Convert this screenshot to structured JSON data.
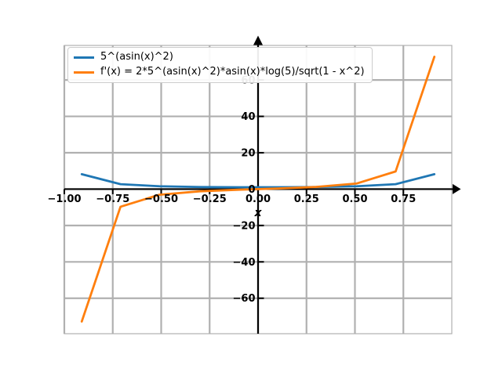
{
  "chart_data": {
    "type": "line",
    "x": [
      -0.91,
      -0.71,
      -0.51,
      -0.3,
      -0.1,
      0.1,
      0.3,
      0.51,
      0.71,
      0.91
    ],
    "series": [
      {
        "name": "5^(asin(x)^2)",
        "color": "#1f77b4",
        "values": [
          8.2,
          2.72,
          1.58,
          1.16,
          1.02,
          1.02,
          1.16,
          1.58,
          2.72,
          8.2
        ]
      },
      {
        "name": "f'(x) = 2*5^(asin(x)^2)*asin(x)*log(5)/sqrt(1 - x^2)",
        "color": "#ff7f0e",
        "values": [
          -72.8,
          -9.7,
          -3.1,
          -1.2,
          -0.33,
          0.33,
          1.2,
          3.1,
          9.7,
          72.8
        ]
      }
    ],
    "title": "",
    "xlabel": "x",
    "ylabel": "",
    "xlim": [
      -1.0,
      1.0
    ],
    "ylim": [
      -79.5,
      79.0
    ],
    "grid": true,
    "legend_position": "upper-left",
    "x_ticks": {
      "values": [
        -1.0,
        -0.75,
        -0.5,
        -0.25,
        0.0,
        0.25,
        0.5,
        0.75
      ],
      "labels": [
        "−1.00",
        "−0.75",
        "−0.50",
        "−0.25",
        "0.00",
        "0.25",
        "0.50",
        "0.75"
      ]
    },
    "y_ticks": {
      "values": [
        -60,
        -40,
        -20,
        0,
        20,
        40,
        60
      ],
      "labels": [
        "−60",
        "−40",
        "−20",
        "0",
        "20",
        "40",
        "60"
      ]
    },
    "colors": {
      "grid": "#b0b0b0",
      "spine": "#b0b0b0",
      "axis": "#000000",
      "tick_label": "#000000",
      "legend_border": "#cccccc"
    }
  }
}
